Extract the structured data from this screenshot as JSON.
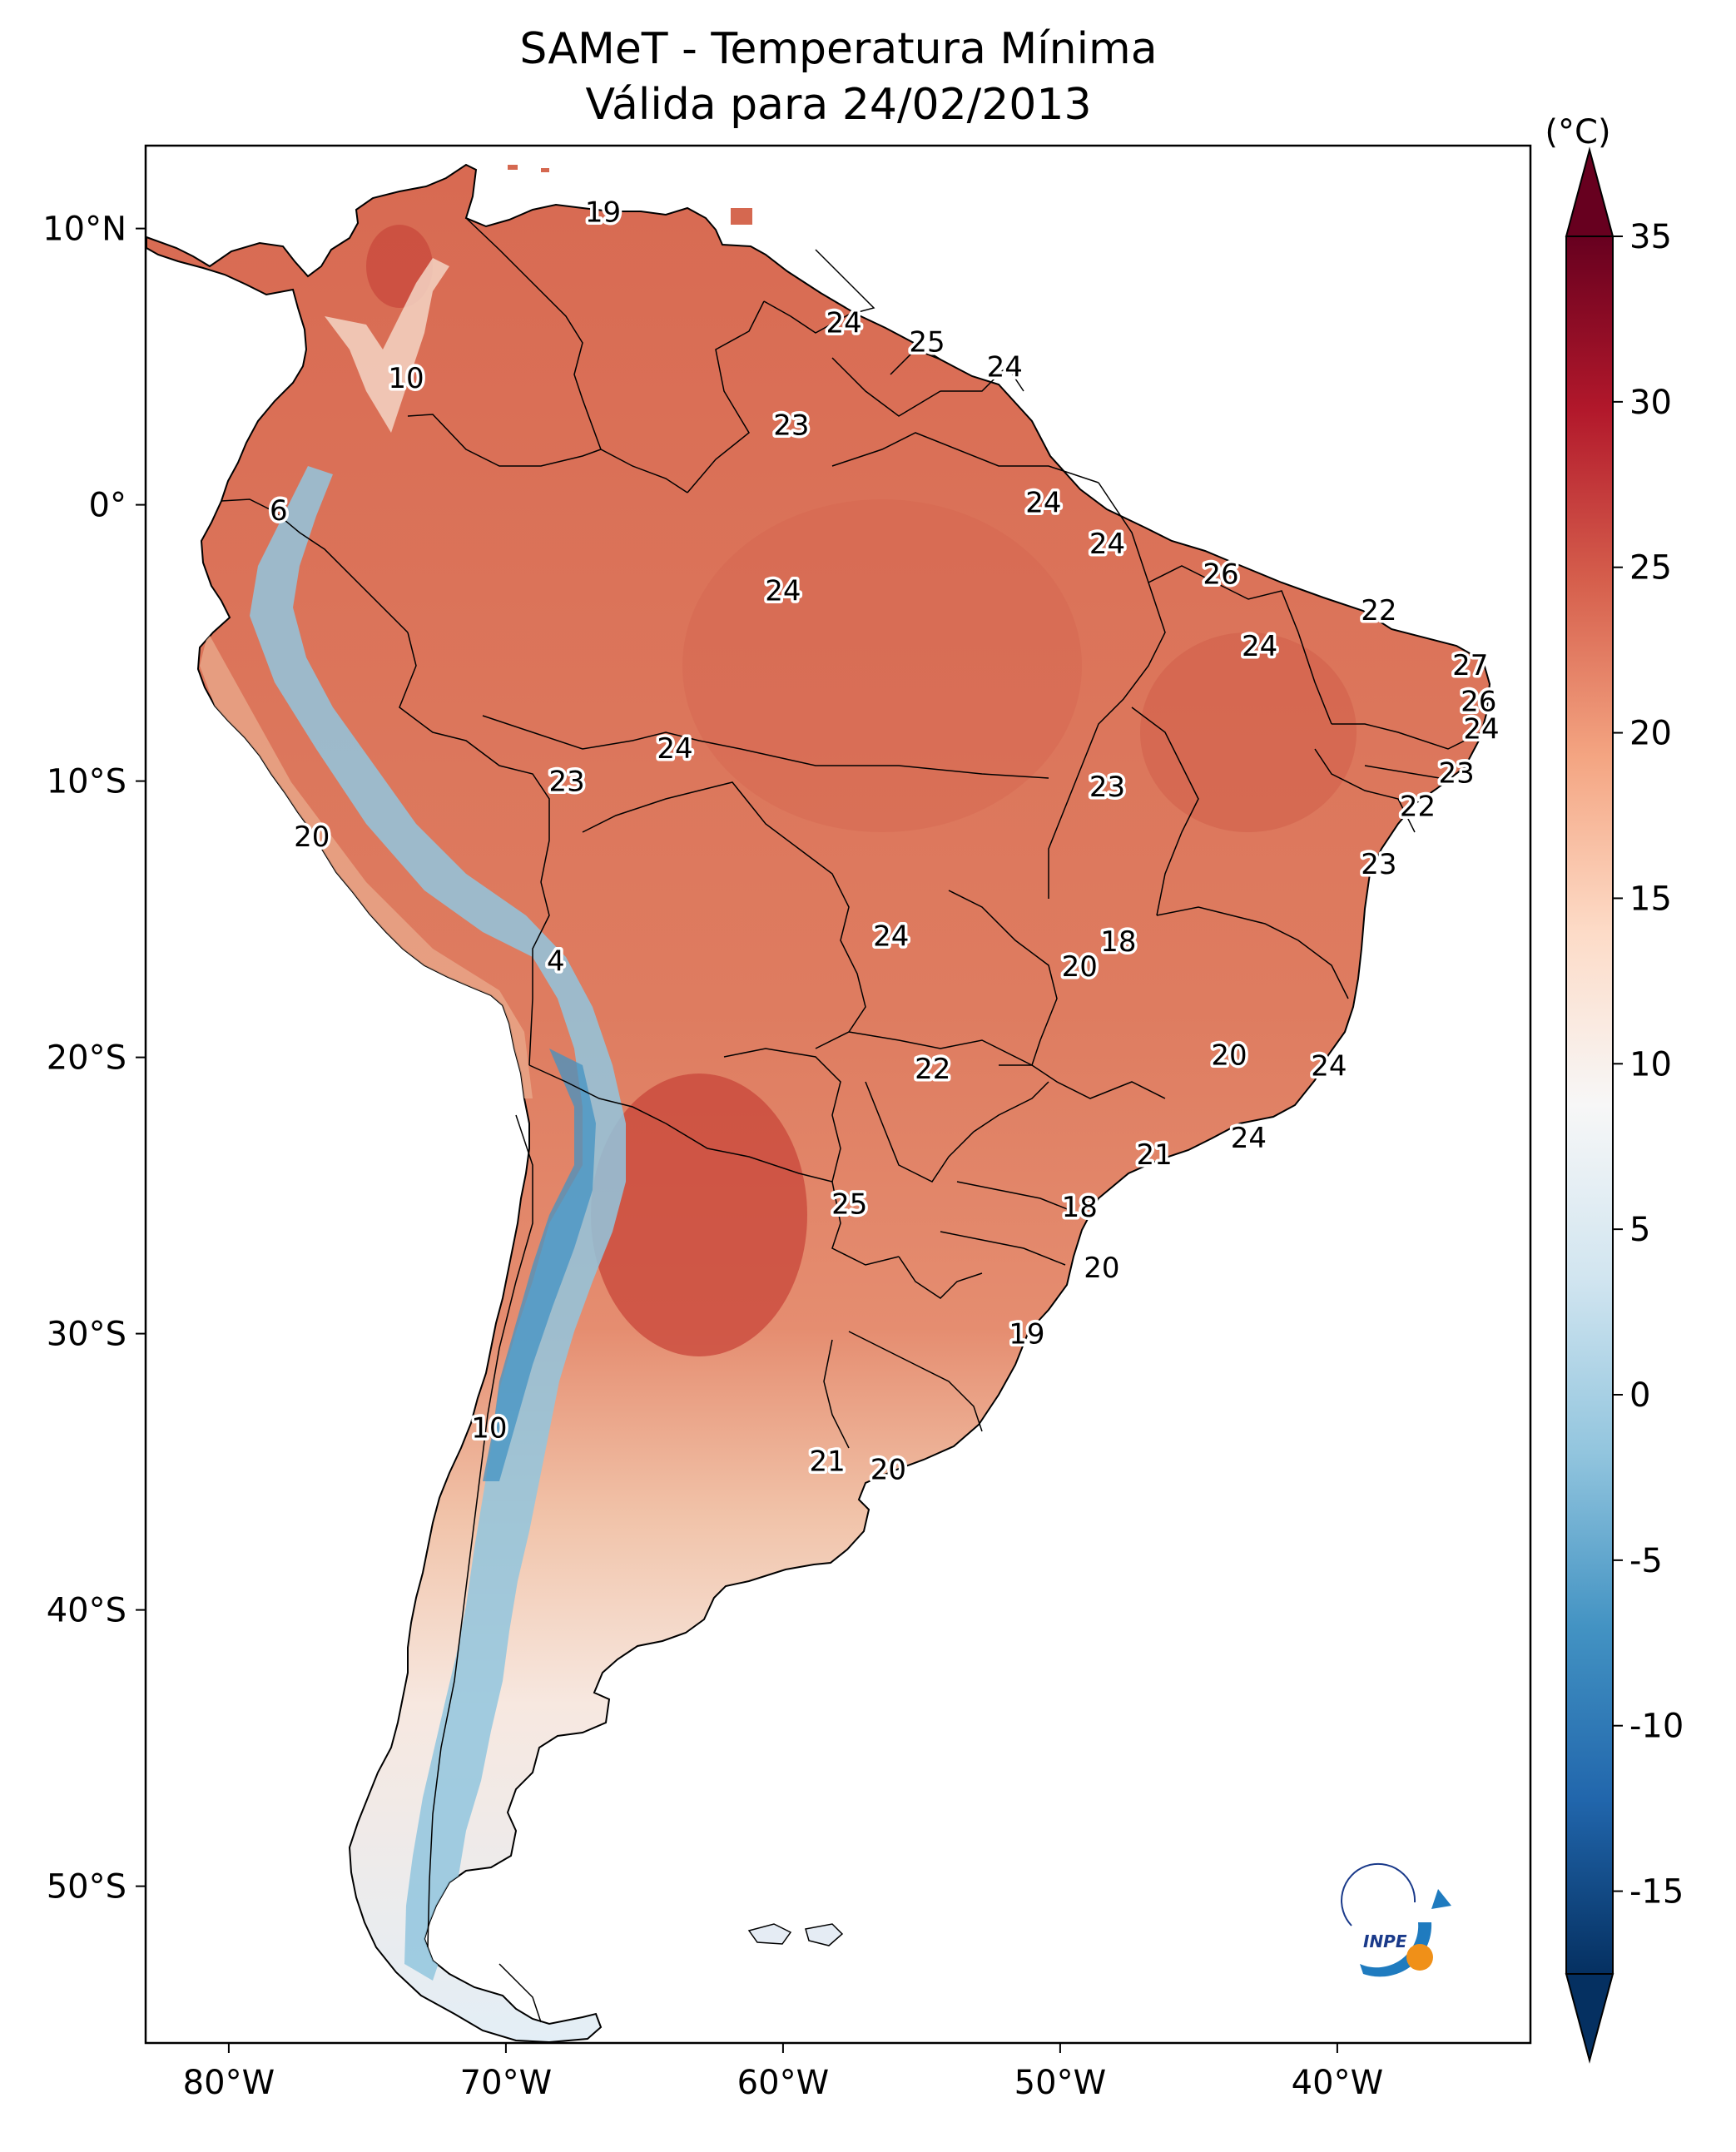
{
  "title": {
    "line1": "SAMeT - Temperatura Mínima",
    "line2": "Válida para 24/02/2013"
  },
  "map": {
    "region": "South America",
    "variable": "Temperatura Mínima",
    "land_color_ramp": [
      "#f2cdb6",
      "#e8967a",
      "#de7a5e",
      "#d56850",
      "#c64a3e"
    ],
    "ocean_color": "#ffffff",
    "border_color": "#000000"
  },
  "axes": {
    "lat_ticks": [
      "10°N",
      "0°",
      "10°S",
      "20°S",
      "30°S",
      "40°S",
      "50°S"
    ],
    "lon_ticks": [
      "80°W",
      "70°W",
      "60°W",
      "50°W",
      "40°W"
    ]
  },
  "station_values": [
    {
      "label": "19",
      "lon": -66.5,
      "lat": 10.6
    },
    {
      "label": "10",
      "lon": -73.6,
      "lat": 4.6
    },
    {
      "label": "24",
      "lon": -57.8,
      "lat": 6.6
    },
    {
      "label": "25",
      "lon": -54.8,
      "lat": 5.9
    },
    {
      "label": "24",
      "lon": -52.0,
      "lat": 5.0
    },
    {
      "label": "23",
      "lon": -59.7,
      "lat": 2.9
    },
    {
      "label": "6",
      "lon": -78.2,
      "lat": -0.2
    },
    {
      "label": "24",
      "lon": -50.6,
      "lat": 0.1
    },
    {
      "label": "24",
      "lon": -48.3,
      "lat": -1.4
    },
    {
      "label": "26",
      "lon": -44.2,
      "lat": -2.5
    },
    {
      "label": "24",
      "lon": -60.0,
      "lat": -3.1
    },
    {
      "label": "22",
      "lon": -38.5,
      "lat": -3.8
    },
    {
      "label": "24",
      "lon": -42.8,
      "lat": -5.1
    },
    {
      "label": "27",
      "lon": -35.2,
      "lat": -5.8
    },
    {
      "label": "26",
      "lon": -34.9,
      "lat": -7.1
    },
    {
      "label": "24",
      "lon": -34.8,
      "lat": -8.1
    },
    {
      "label": "24",
      "lon": -63.9,
      "lat": -8.8
    },
    {
      "label": "23",
      "lon": -67.8,
      "lat": -10.0
    },
    {
      "label": "23",
      "lon": -48.3,
      "lat": -10.2
    },
    {
      "label": "23",
      "lon": -35.7,
      "lat": -9.7
    },
    {
      "label": "22",
      "lon": -37.1,
      "lat": -10.9
    },
    {
      "label": "20",
      "lon": -77.0,
      "lat": -12.0
    },
    {
      "label": "23",
      "lon": -38.5,
      "lat": -13.0
    },
    {
      "label": "4",
      "lon": -68.2,
      "lat": -16.5
    },
    {
      "label": "24",
      "lon": -56.1,
      "lat": -15.6
    },
    {
      "label": "18",
      "lon": -47.9,
      "lat": -15.8
    },
    {
      "label": "20",
      "lon": -49.3,
      "lat": -16.7
    },
    {
      "label": "20",
      "lon": -43.9,
      "lat": -19.9
    },
    {
      "label": "24",
      "lon": -40.3,
      "lat": -20.3
    },
    {
      "label": "22",
      "lon": -54.6,
      "lat": -20.4
    },
    {
      "label": "24",
      "lon": -43.2,
      "lat": -22.9
    },
    {
      "label": "21",
      "lon": -46.6,
      "lat": -23.5
    },
    {
      "label": "25",
      "lon": -57.6,
      "lat": -25.3
    },
    {
      "label": "18",
      "lon": -49.3,
      "lat": -25.4
    },
    {
      "label": "20",
      "lon": -48.5,
      "lat": -27.6
    },
    {
      "label": "19",
      "lon": -51.2,
      "lat": -30.0
    },
    {
      "label": "10",
      "lon": -70.6,
      "lat": -33.4
    },
    {
      "label": "21",
      "lon": -58.4,
      "lat": -34.6
    },
    {
      "label": "20",
      "lon": -56.2,
      "lat": -34.9
    }
  ],
  "colorbar": {
    "unit": "(°C)",
    "min": -15,
    "max": 35,
    "ticks": [
      "35",
      "30",
      "25",
      "20",
      "15",
      "10",
      "5",
      "0",
      "-5",
      "-10",
      "-15"
    ],
    "colors": [
      "#053061",
      "#2166ac",
      "#4393c3",
      "#92c5de",
      "#d1e5f0",
      "#f7f7f7",
      "#fddbc7",
      "#f4a582",
      "#d6604d",
      "#b2182b",
      "#67001f"
    ]
  },
  "logo": {
    "text": "INPE"
  }
}
